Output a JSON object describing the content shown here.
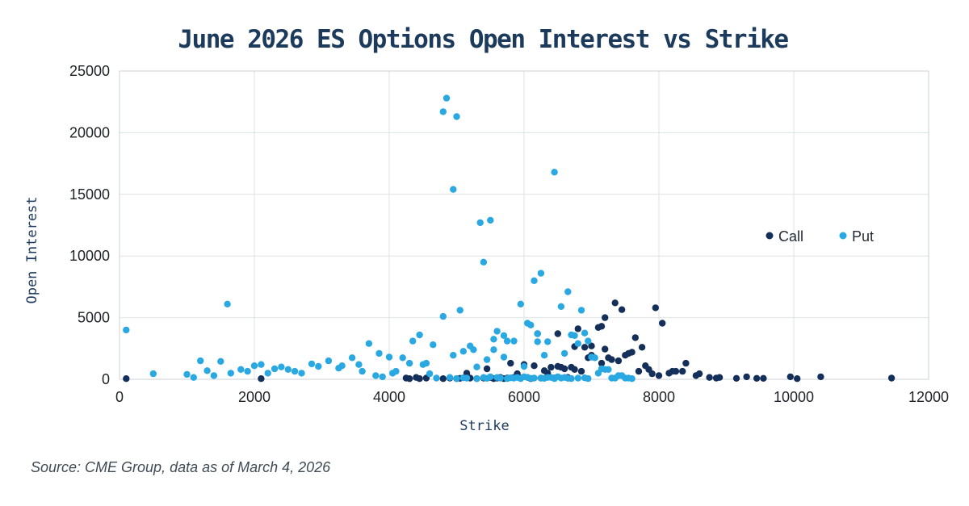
{
  "source_note": "Source: CME Group, data as of March 4, 2026",
  "chart_data": {
    "type": "scatter",
    "title": "June 2026 ES Options Open Interest vs Strike",
    "xlabel": "Strike",
    "ylabel": "Open Interest",
    "xlim": [
      0,
      12000
    ],
    "ylim": [
      0,
      25000
    ],
    "x_ticks": [
      0,
      2000,
      4000,
      6000,
      8000,
      10000,
      12000
    ],
    "y_ticks": [
      0,
      5000,
      10000,
      15000,
      20000,
      25000
    ],
    "grid": true,
    "legend": {
      "position": "inside-right",
      "entries": [
        "Call",
        "Put"
      ]
    },
    "series": [
      {
        "name": "Call",
        "color": "#14305a",
        "points": [
          [
            100,
            50
          ],
          [
            2100,
            50
          ],
          [
            4250,
            100
          ],
          [
            4300,
            50
          ],
          [
            4400,
            150
          ],
          [
            4450,
            50
          ],
          [
            4550,
            100
          ],
          [
            4800,
            50
          ],
          [
            4900,
            100
          ],
          [
            5000,
            50
          ],
          [
            5050,
            80
          ],
          [
            5150,
            500
          ],
          [
            5200,
            100
          ],
          [
            5300,
            50
          ],
          [
            5400,
            100
          ],
          [
            5450,
            850
          ],
          [
            5500,
            150
          ],
          [
            5550,
            50
          ],
          [
            5600,
            100
          ],
          [
            5650,
            150
          ],
          [
            5700,
            50
          ],
          [
            5750,
            100
          ],
          [
            5800,
            1300
          ],
          [
            5850,
            150
          ],
          [
            5900,
            450
          ],
          [
            5950,
            100
          ],
          [
            6000,
            1200
          ],
          [
            6050,
            150
          ],
          [
            6100,
            50
          ],
          [
            6150,
            1100
          ],
          [
            6200,
            3700
          ],
          [
            6250,
            100
          ],
          [
            6300,
            700
          ],
          [
            6350,
            500
          ],
          [
            6400,
            975
          ],
          [
            6450,
            100
          ],
          [
            6500,
            3700
          ],
          [
            6500,
            1050
          ],
          [
            6550,
            975
          ],
          [
            6600,
            850
          ],
          [
            6650,
            150
          ],
          [
            6700,
            975
          ],
          [
            6750,
            2650
          ],
          [
            6750,
            800
          ],
          [
            6800,
            4100
          ],
          [
            6850,
            650
          ],
          [
            6900,
            2600
          ],
          [
            6950,
            1750
          ],
          [
            7000,
            2700
          ],
          [
            7000,
            1950
          ],
          [
            7100,
            4200
          ],
          [
            7150,
            4300
          ],
          [
            7150,
            1300
          ],
          [
            7200,
            5000
          ],
          [
            7200,
            2450
          ],
          [
            7250,
            1750
          ],
          [
            7300,
            1600
          ],
          [
            7350,
            6200
          ],
          [
            7400,
            1500
          ],
          [
            7450,
            5650
          ],
          [
            7500,
            1950
          ],
          [
            7550,
            2100
          ],
          [
            7600,
            2200
          ],
          [
            7650,
            3380
          ],
          [
            7700,
            650
          ],
          [
            7750,
            2600
          ],
          [
            7800,
            1100
          ],
          [
            7850,
            800
          ],
          [
            7900,
            450
          ],
          [
            7950,
            5800
          ],
          [
            8000,
            300
          ],
          [
            8050,
            4550
          ],
          [
            8150,
            500
          ],
          [
            8200,
            650
          ],
          [
            8250,
            650
          ],
          [
            8350,
            650
          ],
          [
            8400,
            1300
          ],
          [
            8550,
            300
          ],
          [
            8600,
            450
          ],
          [
            8750,
            150
          ],
          [
            8850,
            100
          ],
          [
            8900,
            150
          ],
          [
            9150,
            80
          ],
          [
            9300,
            200
          ],
          [
            9450,
            80
          ],
          [
            9550,
            80
          ],
          [
            9950,
            200
          ],
          [
            10050,
            50
          ],
          [
            10400,
            200
          ],
          [
            11450,
            100
          ]
        ]
      },
      {
        "name": "Put",
        "color": "#29a8e1",
        "points": [
          [
            100,
            4000
          ],
          [
            500,
            450
          ],
          [
            1000,
            400
          ],
          [
            1100,
            150
          ],
          [
            1200,
            1500
          ],
          [
            1300,
            700
          ],
          [
            1400,
            300
          ],
          [
            1500,
            1450
          ],
          [
            1600,
            6100
          ],
          [
            1650,
            500
          ],
          [
            1800,
            800
          ],
          [
            1900,
            650
          ],
          [
            2000,
            1100
          ],
          [
            2100,
            1200
          ],
          [
            2200,
            500
          ],
          [
            2300,
            850
          ],
          [
            2400,
            1000
          ],
          [
            2500,
            800
          ],
          [
            2600,
            650
          ],
          [
            2700,
            500
          ],
          [
            2850,
            1250
          ],
          [
            2950,
            1050
          ],
          [
            3100,
            1500
          ],
          [
            3250,
            900
          ],
          [
            3300,
            1100
          ],
          [
            3450,
            1750
          ],
          [
            3550,
            1200
          ],
          [
            3600,
            650
          ],
          [
            3700,
            2900
          ],
          [
            3800,
            300
          ],
          [
            3850,
            2100
          ],
          [
            3900,
            200
          ],
          [
            4000,
            1800
          ],
          [
            4050,
            500
          ],
          [
            4100,
            650
          ],
          [
            4200,
            1750
          ],
          [
            4300,
            1300
          ],
          [
            4350,
            3100
          ],
          [
            4450,
            3600
          ],
          [
            4500,
            1200
          ],
          [
            4550,
            1300
          ],
          [
            4600,
            450
          ],
          [
            4650,
            2800
          ],
          [
            4700,
            100
          ],
          [
            4800,
            5100
          ],
          [
            4800,
            21700
          ],
          [
            4850,
            22800
          ],
          [
            4900,
            150
          ],
          [
            4950,
            15400
          ],
          [
            4950,
            1950
          ],
          [
            5000,
            21300
          ],
          [
            5000,
            60
          ],
          [
            5050,
            5600
          ],
          [
            5100,
            2270
          ],
          [
            5100,
            120
          ],
          [
            5150,
            100
          ],
          [
            5200,
            2700
          ],
          [
            5250,
            2400
          ],
          [
            5300,
            1000
          ],
          [
            5300,
            60
          ],
          [
            5350,
            12700
          ],
          [
            5400,
            9500
          ],
          [
            5400,
            150
          ],
          [
            5450,
            1600
          ],
          [
            5450,
            80
          ],
          [
            5500,
            12900
          ],
          [
            5500,
            200
          ],
          [
            5550,
            3250
          ],
          [
            5550,
            2400
          ],
          [
            5600,
            3900
          ],
          [
            5600,
            150
          ],
          [
            5650,
            100
          ],
          [
            5700,
            3550
          ],
          [
            5700,
            1800
          ],
          [
            5750,
            3100
          ],
          [
            5750,
            60
          ],
          [
            5800,
            120
          ],
          [
            5850,
            3100
          ],
          [
            5850,
            100
          ],
          [
            5900,
            150
          ],
          [
            5950,
            6100
          ],
          [
            5950,
            60
          ],
          [
            6000,
            1050
          ],
          [
            6000,
            200
          ],
          [
            6050,
            4550
          ],
          [
            6050,
            150
          ],
          [
            6100,
            4400
          ],
          [
            6100,
            80
          ],
          [
            6150,
            8000
          ],
          [
            6150,
            100
          ],
          [
            6200,
            3700
          ],
          [
            6200,
            3050
          ],
          [
            6250,
            8600
          ],
          [
            6250,
            100
          ],
          [
            6300,
            1950
          ],
          [
            6300,
            80
          ],
          [
            6350,
            3050
          ],
          [
            6350,
            150
          ],
          [
            6400,
            150
          ],
          [
            6450,
            16800
          ],
          [
            6450,
            60
          ],
          [
            6500,
            200
          ],
          [
            6550,
            5900
          ],
          [
            6550,
            100
          ],
          [
            6600,
            2100
          ],
          [
            6600,
            150
          ],
          [
            6650,
            7100
          ],
          [
            6650,
            80
          ],
          [
            6700,
            3600
          ],
          [
            6700,
            60
          ],
          [
            6750,
            3550
          ],
          [
            6800,
            2900
          ],
          [
            6800,
            100
          ],
          [
            6850,
            5600
          ],
          [
            6900,
            3750
          ],
          [
            6900,
            120
          ],
          [
            6950,
            3100
          ],
          [
            6950,
            60
          ],
          [
            7000,
            1800
          ],
          [
            7050,
            1750
          ],
          [
            7100,
            500
          ],
          [
            7150,
            850
          ],
          [
            7200,
            800
          ],
          [
            7250,
            800
          ],
          [
            7300,
            100
          ],
          [
            7350,
            100
          ],
          [
            7400,
            300
          ],
          [
            7450,
            300
          ],
          [
            7500,
            100
          ],
          [
            7550,
            100
          ],
          [
            7600,
            50
          ]
        ]
      }
    ]
  }
}
